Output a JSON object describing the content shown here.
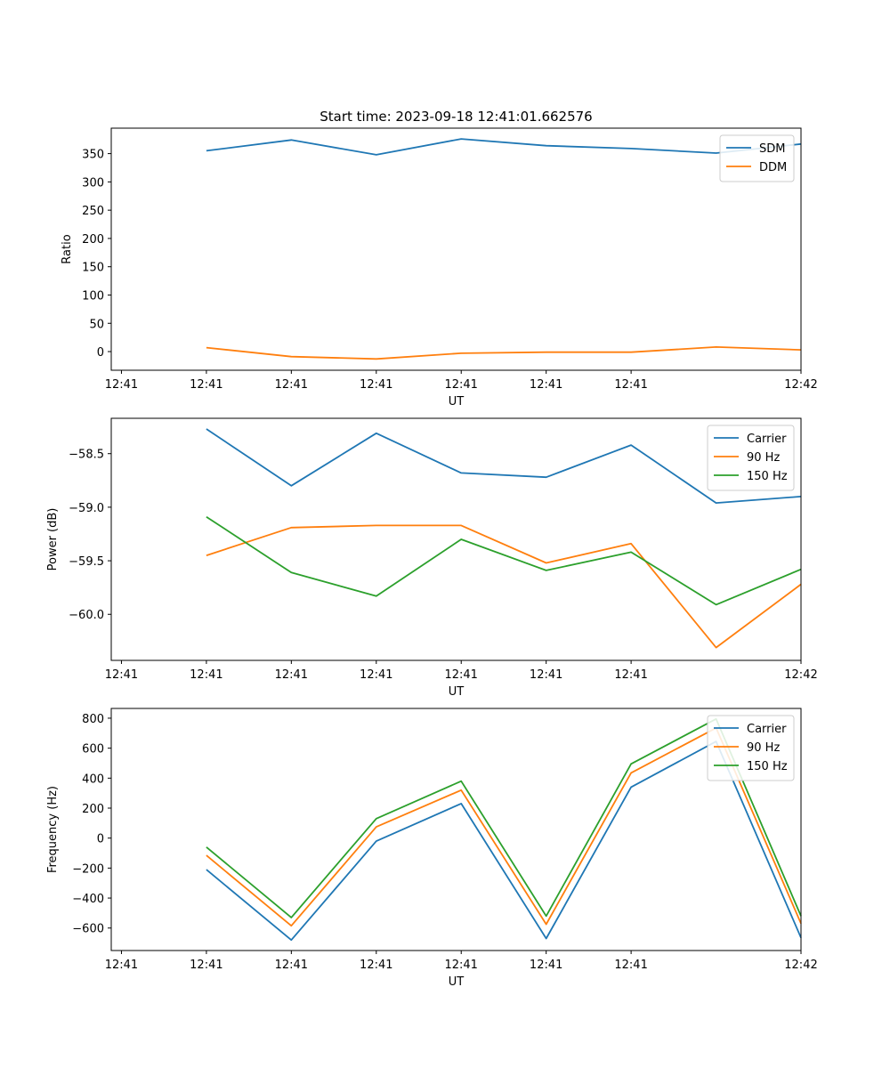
{
  "chart_data": [
    {
      "type": "line",
      "title": "Start time: 2023-09-18 12:41:01.662576",
      "xlabel": "UT",
      "ylabel": "Ratio",
      "x_tick_labels": [
        "12:41",
        "12:41",
        "12:41",
        "12:41",
        "12:41",
        "12:41",
        "12:41"
      ],
      "x_last_tick_label": "12:42",
      "ylim": [
        -33,
        395
      ],
      "yticks": [
        0,
        50,
        100,
        150,
        200,
        250,
        300,
        350
      ],
      "y_tick_labels": [
        "0",
        "50",
        "100",
        "150",
        "200",
        "250",
        "300",
        "350"
      ],
      "legend_position": "top-right",
      "x": [
        1,
        2,
        3,
        4,
        5,
        6,
        7,
        8
      ],
      "series": [
        {
          "name": "SDM",
          "color": "#1f77b4",
          "values": [
            355,
            374,
            348,
            376,
            364,
            359,
            351,
            367
          ]
        },
        {
          "name": "DDM",
          "color": "#ff7f0e",
          "values": [
            7,
            -9,
            -13,
            -3,
            -1,
            -1,
            8,
            3
          ]
        }
      ]
    },
    {
      "type": "line",
      "xlabel": "UT",
      "ylabel": "Power (dB)",
      "x_tick_labels": [
        "12:41",
        "12:41",
        "12:41",
        "12:41",
        "12:41",
        "12:41",
        "12:41"
      ],
      "x_last_tick_label": "12:42",
      "ylim": [
        -60.43,
        -58.17
      ],
      "yticks": [
        -60.0,
        -59.5,
        -59.0,
        -58.5
      ],
      "y_tick_labels": [
        "−60.0",
        "−59.5",
        "−59.0",
        "−58.5"
      ],
      "legend_position": "top-right",
      "x": [
        1,
        2,
        3,
        4,
        5,
        6,
        7,
        8
      ],
      "series": [
        {
          "name": "Carrier",
          "color": "#1f77b4",
          "values": [
            -58.27,
            -58.8,
            -58.31,
            -58.68,
            -58.72,
            -58.42,
            -58.96,
            -58.9
          ]
        },
        {
          "name": "90 Hz",
          "color": "#ff7f0e",
          "values": [
            -59.45,
            -59.19,
            -59.17,
            -59.17,
            -59.52,
            -59.34,
            -60.31,
            -59.72
          ]
        },
        {
          "name": "150 Hz",
          "color": "#2ca02c",
          "values": [
            -59.09,
            -59.61,
            -59.83,
            -59.3,
            -59.59,
            -59.42,
            -59.91,
            -59.58
          ]
        }
      ]
    },
    {
      "type": "line",
      "xlabel": "UT",
      "ylabel": "Frequency (Hz)",
      "x_tick_labels": [
        "12:41",
        "12:41",
        "12:41",
        "12:41",
        "12:41",
        "12:41",
        "12:41"
      ],
      "x_last_tick_label": "12:42",
      "ylim": [
        -750,
        865
      ],
      "yticks": [
        -600,
        -400,
        -200,
        0,
        200,
        400,
        600,
        800
      ],
      "y_tick_labels": [
        "−600",
        "−400",
        "−200",
        "0",
        "200",
        "400",
        "600",
        "800"
      ],
      "legend_position": "top-right",
      "x": [
        1,
        2,
        3,
        4,
        5,
        6,
        7,
        8
      ],
      "series": [
        {
          "name": "Carrier",
          "color": "#1f77b4",
          "values": [
            -210,
            -680,
            -20,
            230,
            -670,
            340,
            645,
            -665
          ]
        },
        {
          "name": "90 Hz",
          "color": "#ff7f0e",
          "values": [
            -115,
            -585,
            75,
            320,
            -575,
            435,
            735,
            -570
          ]
        },
        {
          "name": "150 Hz",
          "color": "#2ca02c",
          "values": [
            -60,
            -530,
            130,
            380,
            -520,
            495,
            795,
            -520
          ]
        }
      ]
    }
  ]
}
